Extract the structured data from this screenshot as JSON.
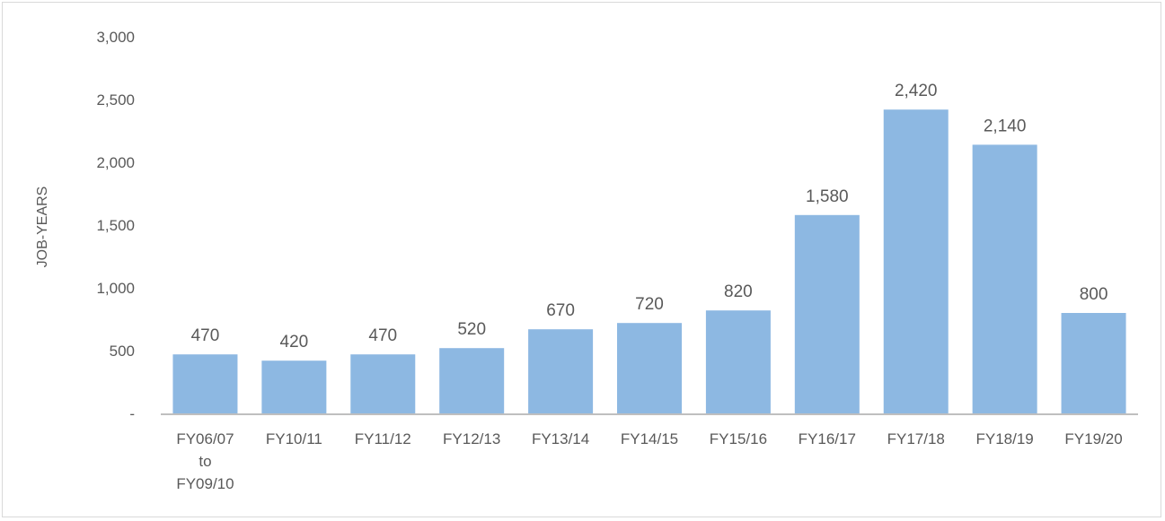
{
  "chart_data": {
    "type": "bar",
    "categories": [
      [
        "FY06/07",
        "to",
        "FY09/10"
      ],
      [
        "FY10/11"
      ],
      [
        "FY11/12"
      ],
      [
        "FY12/13"
      ],
      [
        "FY13/14"
      ],
      [
        "FY14/15"
      ],
      [
        "FY15/16"
      ],
      [
        "FY16/17"
      ],
      [
        "FY17/18"
      ],
      [
        "FY18/19"
      ],
      [
        "FY19/20"
      ]
    ],
    "values": [
      470,
      420,
      470,
      520,
      670,
      720,
      820,
      1580,
      2420,
      2140,
      800
    ],
    "value_labels": [
      "470",
      "420",
      "470",
      "520",
      "670",
      "720",
      "820",
      "1,580",
      "2,420",
      "2,140",
      "800"
    ],
    "ylabel": "JOB-YEARS",
    "ylim": [
      0,
      3000
    ],
    "yticks": [
      0,
      500,
      1000,
      1500,
      2000,
      2500,
      3000
    ],
    "ytick_labels": [
      "-",
      "500",
      "1,000",
      "1,500",
      "2,000",
      "2,500",
      "3,000"
    ],
    "grid": false,
    "colors": {
      "bar": "#8db8e2",
      "axis": "#bfbfbf",
      "text": "#595959"
    }
  }
}
